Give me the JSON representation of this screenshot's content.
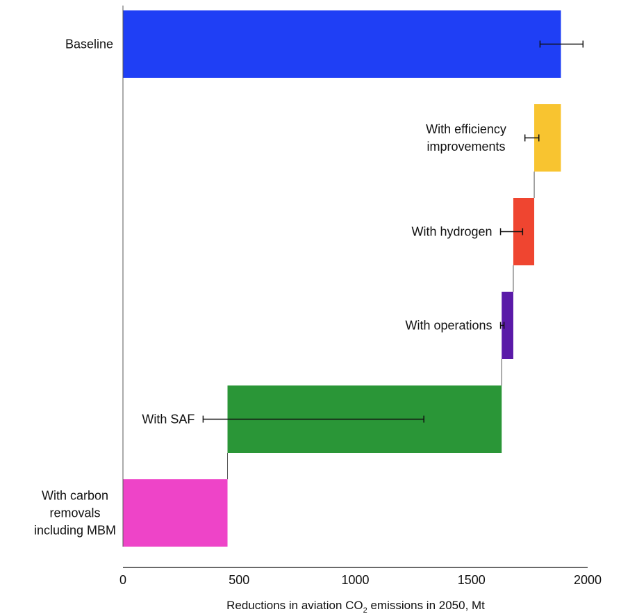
{
  "chart_data": {
    "type": "bar",
    "orientation": "horizontal",
    "style": "waterfall",
    "categories": [
      "Baseline",
      "With efficiency improvements",
      "With hydrogen",
      "With operations",
      "With SAF",
      "With carbon removals including MBM"
    ],
    "label_lines": [
      [
        "Baseline"
      ],
      [
        "With efficiency",
        "improvements"
      ],
      [
        "With hydrogen"
      ],
      [
        "With operations"
      ],
      [
        "With SAF"
      ],
      [
        "With carbon",
        "removals",
        "including MBM"
      ]
    ],
    "bars": [
      {
        "start": 0,
        "end": 1885,
        "color": "#1f3ff5",
        "error": [
          1795,
          1980
        ]
      },
      {
        "start": 1770,
        "end": 1885,
        "color": "#f8c430",
        "error": [
          1730,
          1790
        ]
      },
      {
        "start": 1680,
        "end": 1770,
        "color": "#ef4530",
        "error": [
          1625,
          1720
        ]
      },
      {
        "start": 1630,
        "end": 1680,
        "color": "#5a1aa8",
        "error": [
          1625,
          1640
        ]
      },
      {
        "start": 450,
        "end": 1630,
        "color": "#2a9637",
        "error": [
          345,
          1295
        ]
      },
      {
        "start": 0,
        "end": 450,
        "color": "#ee44c8",
        "error": null
      }
    ],
    "xticks": [
      0,
      500,
      1000,
      1500,
      2000
    ],
    "xlim": [
      0,
      2000
    ],
    "xlabel_main": "Reductions in aviation CO",
    "xlabel_sub": "2",
    "xlabel_tail": " emissions in 2050, Mt",
    "grid": false,
    "legend": "none"
  }
}
